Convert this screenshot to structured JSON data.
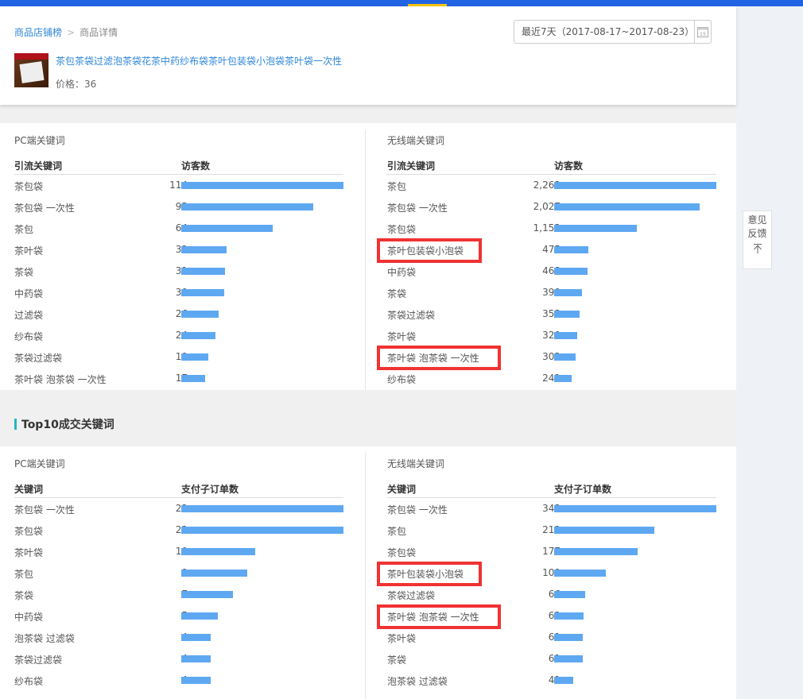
{
  "colors": {
    "topbar": "#2164e3",
    "accent": "#f5c400",
    "bar": "#5ea8f2",
    "highlight": "#f03232",
    "link": "#2f86d8"
  },
  "breadcrumb": {
    "parent": "商品店铺榜",
    "separator": ">",
    "current": "商品详情"
  },
  "product": {
    "title": "茶包茶袋过滤泡茶袋花茶中药纱布袋茶叶包装袋小泡袋茶叶袋一次性",
    "price": "价格：36",
    "image_icon": "product-thumbnail"
  },
  "date_picker": {
    "label": "最近7天（2017-08-17~2017-08-23）",
    "icon": "calendar-icon",
    "icon_text": "15"
  },
  "feedback": {
    "line1": "意见",
    "line2": "反馈",
    "back_top": "↑"
  },
  "traffic": {
    "pc": {
      "title": "PC端关键词",
      "col_keyword": "引流关键词",
      "col_value": "访客数",
      "rows": [
        {
          "kw": "茶包袋",
          "v": 114,
          "label": "114"
        },
        {
          "kw": "茶包袋 一次性",
          "v": 93,
          "label": "93"
        },
        {
          "kw": "茶包",
          "v": 64,
          "label": "64"
        },
        {
          "kw": "茶叶袋",
          "v": 32,
          "label": "32"
        },
        {
          "kw": "茶袋",
          "v": 31,
          "label": "31"
        },
        {
          "kw": "中药袋",
          "v": 30,
          "label": "30"
        },
        {
          "kw": "过滤袋",
          "v": 26,
          "label": "26"
        },
        {
          "kw": "纱布袋",
          "v": 24,
          "label": "24"
        },
        {
          "kw": "茶袋过滤袋",
          "v": 19,
          "label": "19"
        },
        {
          "kw": "茶叶袋 泡茶袋 一次性",
          "v": 17,
          "label": "17"
        }
      ]
    },
    "mobile": {
      "title": "无线端关键词",
      "col_keyword": "引流关键词",
      "col_value": "访客数",
      "rows": [
        {
          "kw": "茶包",
          "v": 2262,
          "label": "2,262"
        },
        {
          "kw": "茶包袋 一次性",
          "v": 2027,
          "label": "2,027"
        },
        {
          "kw": "茶包袋",
          "v": 1152,
          "label": "1,152"
        },
        {
          "kw": "茶叶包装袋小泡袋",
          "v": 475,
          "label": "475",
          "highlighted": true
        },
        {
          "kw": "中药袋",
          "v": 468,
          "label": "468"
        },
        {
          "kw": "茶袋",
          "v": 390,
          "label": "390"
        },
        {
          "kw": "茶袋过滤袋",
          "v": 353,
          "label": "353"
        },
        {
          "kw": "茶叶袋",
          "v": 320,
          "label": "320"
        },
        {
          "kw": "茶叶袋 泡茶袋 一次性",
          "v": 302,
          "label": "302",
          "highlighted": true
        },
        {
          "kw": "纱布袋",
          "v": 241,
          "label": "241"
        }
      ]
    }
  },
  "deal_section": {
    "title": "Top10成交关键词"
  },
  "deal": {
    "pc": {
      "title": "PC端关键词",
      "col_keyword": "关键词",
      "col_value": "支付子订单数",
      "rows": [
        {
          "kw": "茶包袋 一次性",
          "v": 22,
          "label": "22"
        },
        {
          "kw": "茶包袋",
          "v": 22,
          "label": "22"
        },
        {
          "kw": "茶叶袋",
          "v": 10,
          "label": "10"
        },
        {
          "kw": "茶包",
          "v": 9,
          "label": "9"
        },
        {
          "kw": "茶袋",
          "v": 7,
          "label": "7"
        },
        {
          "kw": "中药袋",
          "v": 5,
          "label": "5"
        },
        {
          "kw": "泡茶袋 过滤袋",
          "v": 4,
          "label": "4"
        },
        {
          "kw": "茶袋过滤袋",
          "v": 4,
          "label": "4"
        },
        {
          "kw": "纱布袋",
          "v": 4,
          "label": "4"
        }
      ]
    },
    "mobile": {
      "title": "无线端关键词",
      "col_keyword": "关键词",
      "col_value": "支付子订单数",
      "rows": [
        {
          "kw": "茶包袋 一次性",
          "v": 343,
          "label": "343"
        },
        {
          "kw": "茶包",
          "v": 212,
          "label": "212"
        },
        {
          "kw": "茶包袋",
          "v": 177,
          "label": "177"
        },
        {
          "kw": "茶叶包装袋小泡袋",
          "v": 109,
          "label": "109",
          "highlighted": true
        },
        {
          "kw": "茶袋过滤袋",
          "v": 66,
          "label": "66"
        },
        {
          "kw": "茶叶袋 泡茶袋 一次性",
          "v": 62,
          "label": "62",
          "highlighted": true
        },
        {
          "kw": "茶叶袋",
          "v": 61,
          "label": "61"
        },
        {
          "kw": "茶袋",
          "v": 61,
          "label": "61"
        },
        {
          "kw": "泡茶袋 过滤袋",
          "v": 41,
          "label": "41"
        }
      ]
    }
  }
}
